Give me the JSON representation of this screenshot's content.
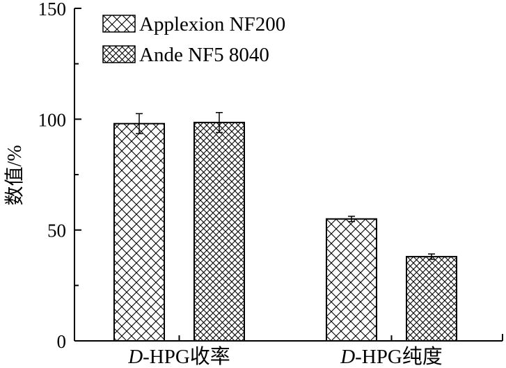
{
  "chart_data": {
    "type": "bar",
    "title": "",
    "xlabel": "",
    "ylabel": "数值/%",
    "ylim": [
      0,
      150
    ],
    "yticks": [
      0,
      50,
      100,
      150
    ],
    "grid": false,
    "legend_position": "top-left",
    "categories": [
      {
        "prefix": "D",
        "suffix": "-HPG收率"
      },
      {
        "prefix": "D",
        "suffix": "-HPG纯度"
      }
    ],
    "series": [
      {
        "name": "Applexion NF200",
        "values": [
          98,
          55
        ],
        "errors": [
          4.5,
          1.2
        ],
        "pattern": "crosshatch-coarse"
      },
      {
        "name": "Ande NF5 8040",
        "values": [
          98.5,
          38
        ],
        "errors": [
          4.5,
          1.2
        ],
        "pattern": "crosshatch-fine"
      }
    ]
  }
}
